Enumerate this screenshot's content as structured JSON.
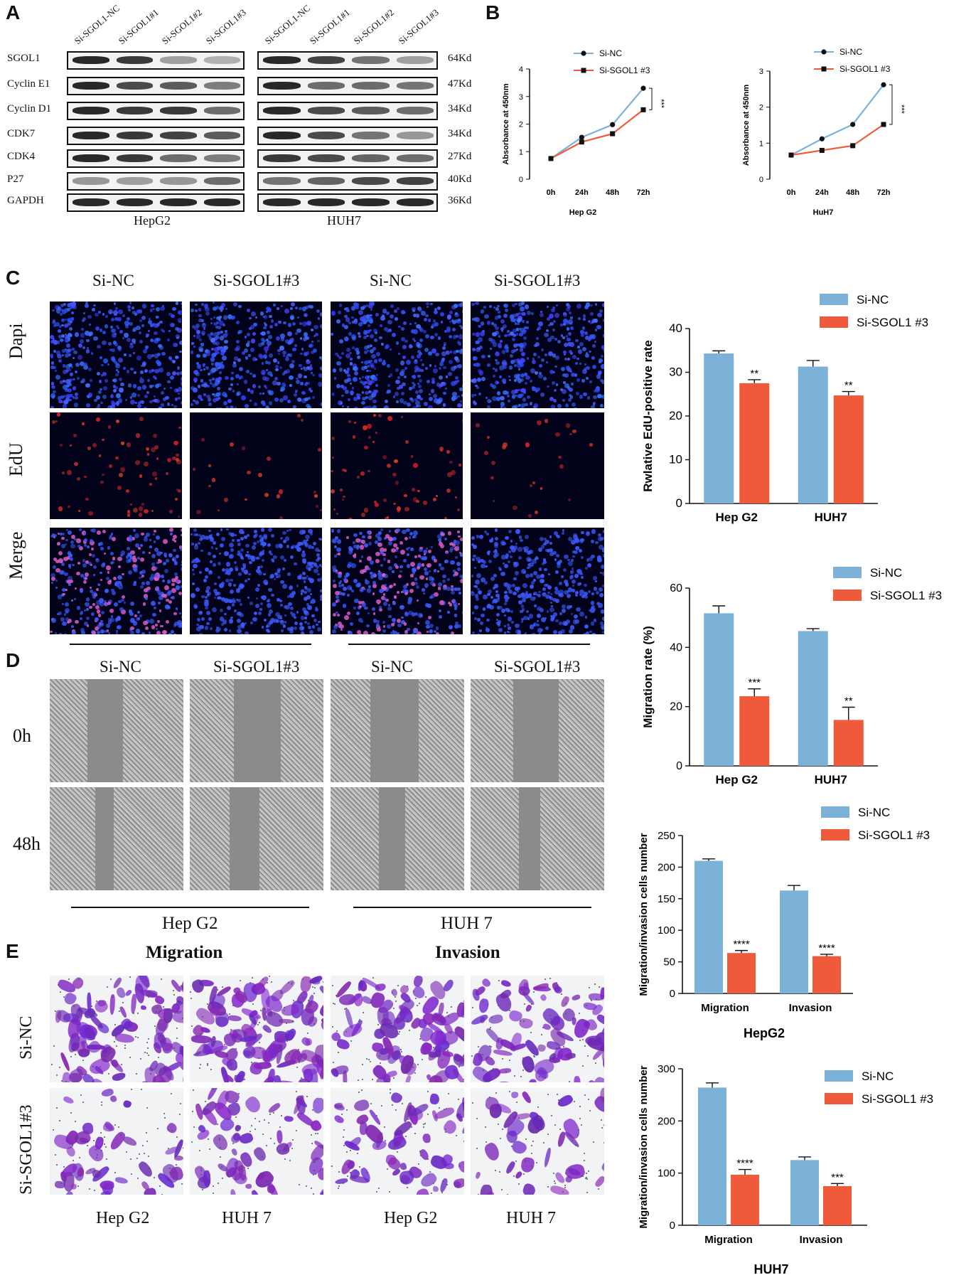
{
  "panels": [
    "A",
    "B",
    "C",
    "D",
    "E"
  ],
  "panelA": {
    "lanes_hepg2": [
      "Si-SGOL1-NC",
      "Si-SGOL1#1",
      "Si-SGOL1#2",
      "Si-SGOL1#3"
    ],
    "lanes_huh7": [
      "Si-SGOL1-NC",
      "Si-SGOL1#1",
      "Si-SGOL1#2",
      "Si-SGOL1#3"
    ],
    "rows": [
      {
        "label": "SGOL1",
        "kd": "64Kd"
      },
      {
        "label": "Cyclin E1",
        "kd": "47Kd"
      },
      {
        "label": "Cyclin D1",
        "kd": "34Kd"
      },
      {
        "label": "CDK7",
        "kd": "34Kd"
      },
      {
        "label": "CDK4",
        "kd": "27Kd"
      },
      {
        "label": "P27",
        "kd": "40Kd"
      },
      {
        "label": "GAPDH",
        "kd": "36Kd"
      }
    ],
    "cell_lines": [
      "HepG2",
      "HUH7"
    ]
  },
  "panelC": {
    "columns": [
      "Si-NC",
      "Si-SGOL1#3",
      "Si-NC",
      "Si-SGOL1#3"
    ],
    "rows": [
      "Dapi",
      "EdU",
      "Merge"
    ]
  },
  "panelD": {
    "columns": [
      "Si-NC",
      "Si-SGOL1#3",
      "Si-NC",
      "Si-SGOL1#3"
    ],
    "rows": [
      "0h",
      "48h"
    ],
    "groups": [
      "Hep G2",
      "HUH 7"
    ]
  },
  "panelE": {
    "headers": [
      "Migration",
      "Invasion"
    ],
    "rows": [
      "Si-NC",
      "Si-SGOL1#3"
    ],
    "bottom": [
      "Hep G2",
      "HUH 7",
      "Hep G2",
      "HUH 7"
    ]
  },
  "colors": {
    "nc": "#7cb1d8",
    "si": "#ee5a3a",
    "line_nc": "#7cb1d8",
    "line_si": "#ee5a3a"
  },
  "chart_data": [
    {
      "type": "line",
      "title": "",
      "xlabel": "Hep G2",
      "ylabel": "Absorbance at 450nm",
      "x": [
        "0h",
        "24h",
        "48h",
        "72h"
      ],
      "ylim": [
        0,
        4
      ],
      "yticks": [
        0,
        1,
        2,
        3,
        4
      ],
      "series": [
        {
          "name": "Si-NC",
          "values": [
            0.75,
            1.52,
            1.98,
            3.3
          ]
        },
        {
          "name": "Si-SGOL1 #3",
          "values": [
            0.75,
            1.35,
            1.65,
            2.52
          ]
        }
      ],
      "annotation": "***",
      "legend": "top-left"
    },
    {
      "type": "line",
      "title": "",
      "xlabel": "HuH7",
      "ylabel": "Absorbance at 450nm",
      "x": [
        "0h",
        "24h",
        "48h",
        "72h"
      ],
      "ylim": [
        0,
        3
      ],
      "yticks": [
        0,
        1,
        2,
        3
      ],
      "series": [
        {
          "name": "Si-NC",
          "values": [
            0.67,
            1.12,
            1.52,
            2.62
          ]
        },
        {
          "name": "Si-SGOL1 #3",
          "values": [
            0.67,
            0.8,
            0.93,
            1.52
          ]
        }
      ],
      "annotation": "***",
      "legend": "top-left"
    },
    {
      "type": "bar",
      "title": "",
      "xlabel": "",
      "ylabel": "Rwlative EdU-positive rate",
      "categories": [
        "Hep G2",
        "HUH7"
      ],
      "ylim": [
        0,
        40
      ],
      "yticks": [
        0,
        10,
        20,
        30,
        40
      ],
      "series": [
        {
          "name": "Si-NC",
          "values": [
            34.3,
            31.3
          ],
          "errors": [
            0.6,
            1.4
          ]
        },
        {
          "name": "Si-SGOL1 #3",
          "values": [
            27.5,
            24.7
          ],
          "errors": [
            0.8,
            0.9
          ]
        }
      ],
      "significance": [
        "**",
        "**"
      ],
      "legend": "top-right"
    },
    {
      "type": "bar",
      "title": "",
      "xlabel": "",
      "ylabel": "Migration rate (%)",
      "categories": [
        "Hep G2",
        "HUH7"
      ],
      "ylim": [
        0,
        60
      ],
      "yticks": [
        0,
        20,
        40,
        60
      ],
      "series": [
        {
          "name": "Si-NC",
          "values": [
            51.5,
            45.5
          ],
          "errors": [
            2.5,
            0.8
          ]
        },
        {
          "name": "Si-SGOL1 #3",
          "values": [
            23.5,
            15.5
          ],
          "errors": [
            2.5,
            4.3
          ]
        }
      ],
      "significance": [
        "***",
        "**"
      ],
      "legend": "top-right"
    },
    {
      "type": "bar",
      "title": "HepG2",
      "xlabel": "",
      "ylabel": "Migration/invasion cells number",
      "categories": [
        "Migration",
        "Invasion"
      ],
      "ylim": [
        0,
        250
      ],
      "yticks": [
        0,
        50,
        100,
        150,
        200,
        250
      ],
      "series": [
        {
          "name": "Si-NC",
          "values": [
            210,
            163
          ],
          "errors": [
            3,
            8
          ]
        },
        {
          "name": "Si-SGOL1 #3",
          "values": [
            64,
            59
          ],
          "errors": [
            4,
            3
          ]
        }
      ],
      "significance": [
        "****",
        "****"
      ],
      "legend": "top-right"
    },
    {
      "type": "bar",
      "title": "HUH7",
      "xlabel": "",
      "ylabel": "Migration/invasion cells number",
      "categories": [
        "Migration",
        "Invasion"
      ],
      "ylim": [
        0,
        300
      ],
      "yticks": [
        0,
        100,
        200,
        300
      ],
      "series": [
        {
          "name": "Si-NC",
          "values": [
            264,
            125
          ],
          "errors": [
            9,
            6
          ]
        },
        {
          "name": "Si-SGOL1 #3",
          "values": [
            97,
            75
          ],
          "errors": [
            10,
            5
          ]
        }
      ],
      "significance": [
        "****",
        "***"
      ],
      "legend": "top-right"
    }
  ]
}
